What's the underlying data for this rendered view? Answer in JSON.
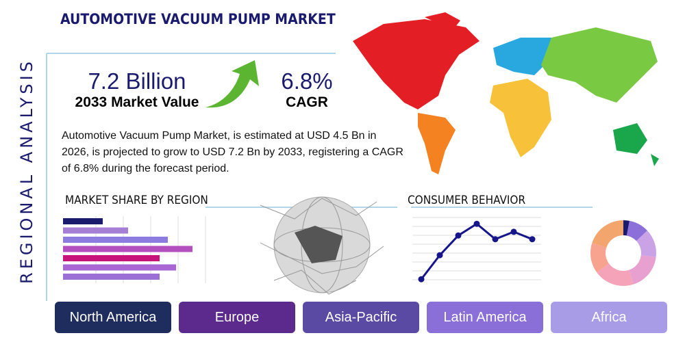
{
  "title": "AUTOMOTIVE VACUUM PUMP MARKET",
  "side_title": "REGIONAL ANALYSIS",
  "stats": [
    {
      "value": "7.2 Billion",
      "label": "2033 Market Value"
    },
    {
      "value": "6.8%",
      "label": "CAGR"
    }
  ],
  "description": "Automotive Vacuum Pump Market, is estimated at USD 4.5 Bn in 2026, is projected to grow to USD 7.2 Bn by 2033, registering a CAGR of 6.8% during the forecast period.",
  "market_share": {
    "title": "MARKET SHARE BY REGION",
    "values": [
      58,
      95,
      153,
      189,
      141,
      165,
      141
    ],
    "colors": [
      "#1a1a6e",
      "#a57fd6",
      "#8c7ce0",
      "#b44fc0",
      "#c8137a",
      "#a966d4",
      "#9b6fd6"
    ]
  },
  "consumer_behavior": {
    "title": "CONSUMER BEHAVIOR",
    "values": [
      2,
      41,
      73,
      92,
      67,
      79,
      67
    ],
    "color": "#16168a"
  },
  "donut": {
    "values": [
      3,
      10,
      14,
      18,
      20,
      15,
      20
    ],
    "colors": [
      "#1a1a6e",
      "#8c6fd8",
      "#c9a3e6",
      "#e7a0cf",
      "#f4a3b8",
      "#f7a38f",
      "#f2a56d"
    ]
  },
  "regions": [
    {
      "name": "North America",
      "color": "#1f2d5e"
    },
    {
      "name": "Europe",
      "color": "#5b2a8c"
    },
    {
      "name": "Asia-Pacific",
      "color": "#5a4aa3"
    },
    {
      "name": "Latin America",
      "color": "#8a6fd8"
    },
    {
      "name": "Africa",
      "color": "#a89ce6"
    }
  ]
}
